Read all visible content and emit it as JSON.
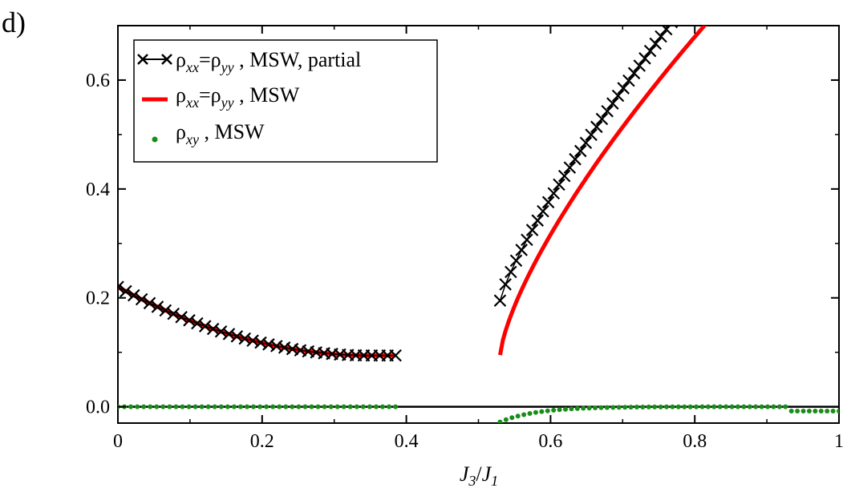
{
  "chart_data": {
    "type": "line",
    "panel_label": "d)",
    "xlabel": {
      "main": "J",
      "sub1": "3",
      "slash": "/",
      "main2": "J",
      "sub2": "1"
    },
    "xlim": [
      0,
      1
    ],
    "ylim": [
      -0.03,
      0.7
    ],
    "xticks": [
      0,
      0.2,
      0.4,
      0.6,
      0.8,
      1
    ],
    "xtick_labels": [
      "0",
      "0.2",
      "0.4",
      "0.6",
      "0.8",
      "1"
    ],
    "yticks": [
      0.0,
      0.2,
      0.4,
      0.6
    ],
    "ytick_labels": [
      "0.0",
      "0.2",
      "0.4",
      "0.6"
    ],
    "legend": {
      "position": "top-left",
      "entries": [
        {
          "sym": "ρ",
          "sub1": "xx",
          "eq": "=",
          "sym2": "ρ",
          "sub2": "yy",
          "text": " , MSW, partial"
        },
        {
          "sym": "ρ",
          "sub1": "xx",
          "eq": "=",
          "sym2": "ρ",
          "sub2": "yy",
          "text": " , MSW"
        },
        {
          "sym": "ρ",
          "sub1": "xy",
          "eq": "",
          "sym2": "",
          "sub2": "",
          "text": " , MSW"
        }
      ]
    },
    "colors": {
      "partial": "#000000",
      "msw": "#ff0000",
      "xy": "#1a8c1a",
      "zero_line": "#000000"
    },
    "series": [
      {
        "name": "ρxx=ρyy , MSW, partial",
        "style": "line+x",
        "segments": [
          {
            "x0": 0,
            "x1": 0.385,
            "n": 36,
            "func": "low"
          },
          {
            "x0": 0.53,
            "x1": 0.82,
            "n": 40,
            "func": "high_partial"
          }
        ]
      },
      {
        "name": "ρxx=ρyy , MSW",
        "style": "line",
        "segments": [
          {
            "x0": 0,
            "x1": 0.385,
            "n": 80,
            "func": "low"
          },
          {
            "x0": 0.53,
            "x1": 0.915,
            "n": 100,
            "func": "high"
          }
        ]
      },
      {
        "name": "ρxy , MSW",
        "style": "dots",
        "segments": [
          {
            "x0": 0,
            "x1": 0.385,
            "n": 44,
            "func": "zero"
          },
          {
            "x0": 0.53,
            "x1": 1.0,
            "n": 58,
            "func": "xy_high"
          }
        ]
      }
    ]
  }
}
